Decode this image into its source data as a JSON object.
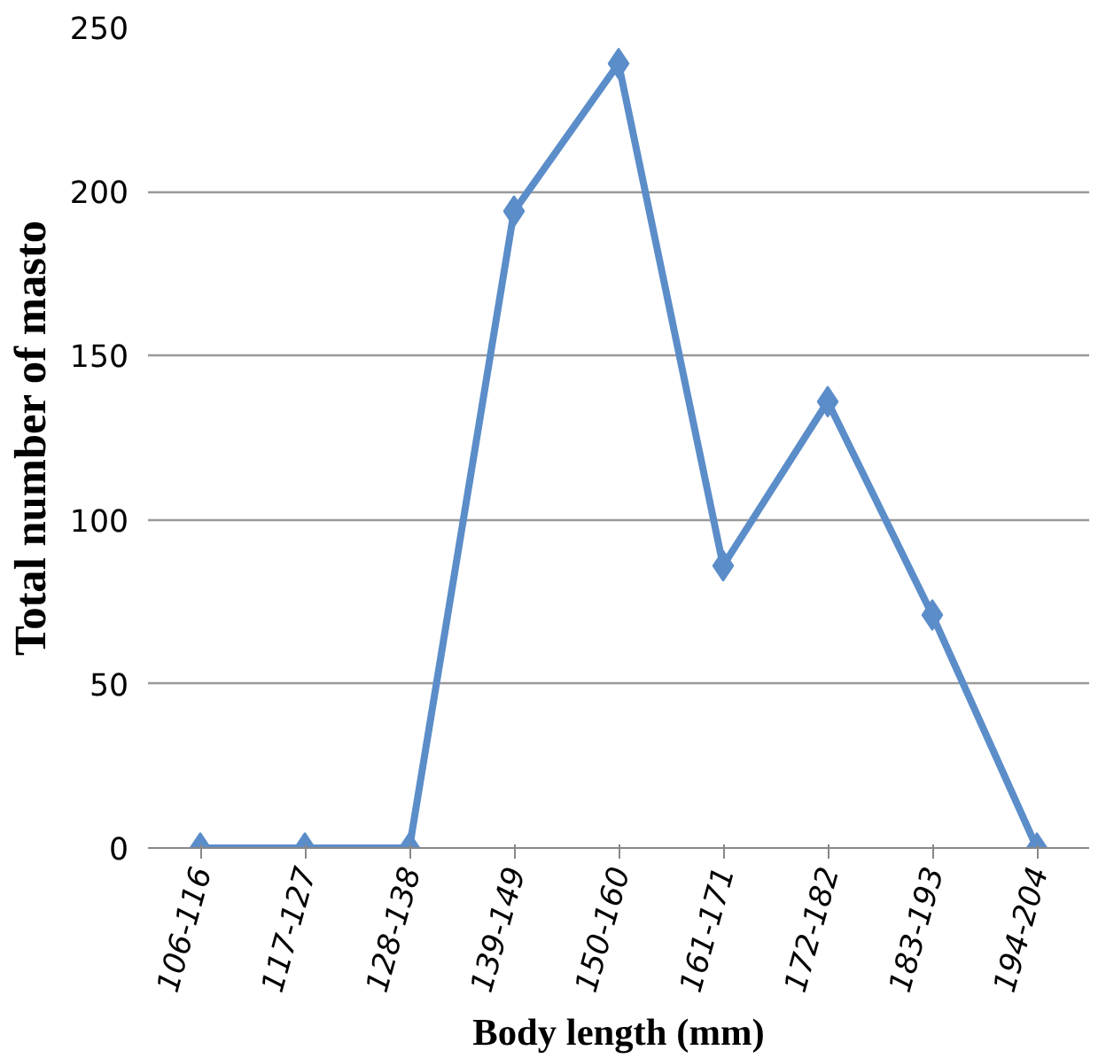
{
  "chart_data": {
    "type": "line",
    "xlabel": "Body length (mm)",
    "ylabel": "Total number of masto",
    "categories": [
      "106-116",
      "117-127",
      "128-138",
      "139-149",
      "150-160",
      "161-171",
      "172-182",
      "183-193",
      "194-204"
    ],
    "series": [
      {
        "color": "#5b8dc9",
        "values": [
          0,
          0,
          0,
          194,
          239,
          86,
          136,
          71,
          0
        ]
      }
    ],
    "ylim": [
      0,
      250
    ],
    "yticks": [
      0,
      50,
      100,
      150,
      200,
      250
    ],
    "grid": "y",
    "marker": "diamond",
    "line_style": "solid"
  }
}
